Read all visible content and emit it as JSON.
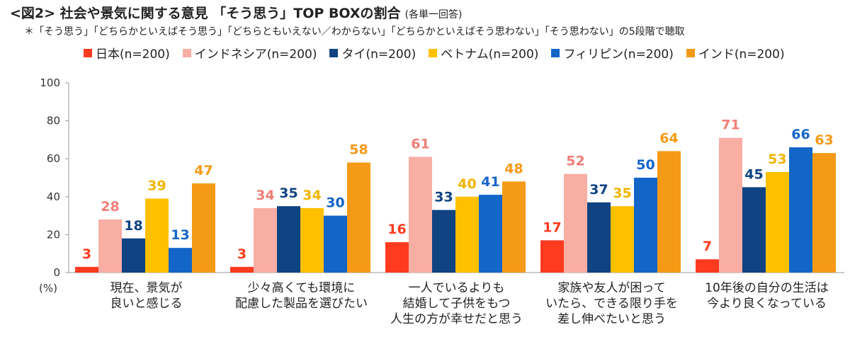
{
  "header": {
    "title": "<図2> 社会や景気に関する意見 「そう思う」TOP BOXの割合",
    "subtitle": "(各単一回答)",
    "note": "＊「そう思う」「どちらかといえばそう思う」「どちらともいえない／わからない」「どちらかといえばそう思わない」「そう思わない」の5段階で聴取"
  },
  "chart_data": {
    "type": "bar",
    "ylim": [
      0,
      100
    ],
    "yticks": [
      "0",
      "20",
      "40",
      "60",
      "80",
      "100"
    ],
    "yunit": "(%)",
    "legend_position": "top",
    "grid": false,
    "categories": [
      [
        "現在、景気が",
        "良いと感じる"
      ],
      [
        "少々高くても環境に",
        "配慮した製品を選びたい"
      ],
      [
        "一人でいるよりも",
        "結婚して子供をもつ",
        "人生の方が幸せだと思う"
      ],
      [
        "家族や友人が困って",
        "いたら、できる限り手を",
        "差し伸べたいと思う"
      ],
      [
        "10年後の自分の生活は",
        "今より良くなっている"
      ]
    ],
    "series": [
      {
        "name": "日本(n=200)",
        "color": "#ff3b1f",
        "label_color": "#ff3b1f",
        "values": [
          3,
          3,
          16,
          17,
          7
        ]
      },
      {
        "name": "インドネシア(n=200)",
        "color": "#f9aea4",
        "label_color": "#f07f76",
        "values": [
          28,
          34,
          61,
          52,
          71
        ]
      },
      {
        "name": "タイ(n=200)",
        "color": "#0f4382",
        "label_color": "#0f4382",
        "values": [
          18,
          35,
          33,
          37,
          45
        ]
      },
      {
        "name": "ベトナム(n=200)",
        "color": "#ffc000",
        "label_color": "#f0b400",
        "values": [
          39,
          34,
          40,
          35,
          53
        ]
      },
      {
        "name": "フィリピン(n=200)",
        "color": "#1465c8",
        "label_color": "#1465c8",
        "values": [
          13,
          30,
          41,
          50,
          66
        ]
      },
      {
        "name": "インド(n=200)",
        "color": "#f59a16",
        "label_color": "#f59a16",
        "values": [
          47,
          58,
          48,
          64,
          63
        ]
      }
    ]
  }
}
